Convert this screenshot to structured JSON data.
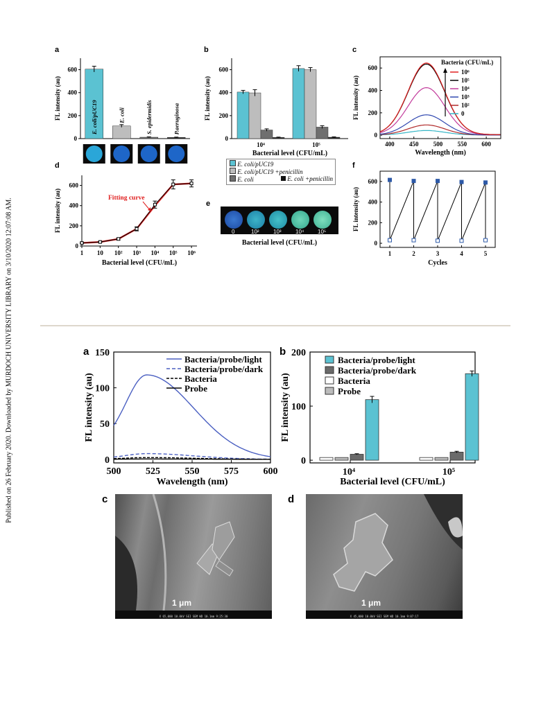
{
  "side_note": "Published on 26 February 2020. Downloaded by MURDOCH UNIVERSITY LIBRARY on 3/10/2020 12:07:08 AM.",
  "top_figure": {
    "panel_labels": [
      "a",
      "b",
      "c",
      "d",
      "e",
      "f"
    ],
    "fitting_label": "Fitting curve",
    "e_xlabel": "Bacterial level (CFU/mL)",
    "e_wells": [
      "0",
      "10²",
      "10³",
      "10⁴",
      "10⁵"
    ],
    "b_legend": [
      "E. coli/pUC19",
      "E. coli/pUC19 +penicillin",
      "E. coli",
      "E. coli +penicillin"
    ]
  },
  "bottom_figure": {
    "panel_labels": [
      "a",
      "b",
      "c",
      "d"
    ],
    "scale_bar_c": "1 μm",
    "scale_bar_d": "1 μm",
    "sem_meta_c": "X 65,000   10.0kV  SEI   SEM   WD 10.1mm  9:25:30",
    "sem_meta_d": "X 45,000   10.0kV  SEI   SEM   WD 10.1mm  9:07:17"
  },
  "chart_data": [
    {
      "id": "top-a",
      "type": "bar",
      "categories": [
        "E. coli/pUC19",
        "E. coli",
        "S. epidermidis",
        "P.aeruginosa"
      ],
      "values": [
        605,
        110,
        12,
        10
      ],
      "errors": [
        25,
        12,
        3,
        3
      ],
      "colors": [
        "#5bc2d2",
        "#bdbdbd",
        "#6f6f6f",
        "#262626"
      ],
      "ylabel": "FL intensity (au)",
      "ylim": [
        0,
        700
      ],
      "yticks": [
        "0",
        "200",
        "400",
        "600"
      ]
    },
    {
      "id": "top-b",
      "type": "bar",
      "categories": [
        "10⁴",
        "10⁵"
      ],
      "series": [
        {
          "name": "E. coli/pUC19",
          "values": [
            405,
            610
          ],
          "errors": [
            15,
            25
          ],
          "color": "#5bc2d2"
        },
        {
          "name": "E. coli/pUC19 +penicillin",
          "values": [
            398,
            600
          ],
          "errors": [
            28,
            18
          ],
          "color": "#bdbdbd"
        },
        {
          "name": "E. coli",
          "values": [
            75,
            100
          ],
          "errors": [
            10,
            12
          ],
          "color": "#6f6f6f"
        },
        {
          "name": "E. coli +penicillin",
          "values": [
            10,
            12
          ],
          "errors": [
            3,
            3
          ],
          "color": "#262626"
        }
      ],
      "xlabel": "Bacterial level (CFU/mL)",
      "ylabel": "FL intensity (au)",
      "ylim": [
        0,
        700
      ],
      "yticks": [
        "0",
        "200",
        "400",
        "600"
      ]
    },
    {
      "id": "top-c",
      "type": "line",
      "x_range": [
        380,
        630
      ],
      "xticks": [
        "400",
        "450",
        "500",
        "550",
        "600"
      ],
      "yticks": [
        "0",
        "200",
        "400",
        "600"
      ],
      "xlabel": "Wavelength (nm)",
      "ylabel": "FL intensity (au)",
      "ylim": [
        -30,
        700
      ],
      "legend_title": "Bacteria (CFU/mL)",
      "series": [
        {
          "name": "10⁶",
          "peak": 640,
          "color": "#e02020"
        },
        {
          "name": "10⁵",
          "peak": 630,
          "color": "#000000"
        },
        {
          "name": "10⁴",
          "peak": 420,
          "color": "#c23a9b"
        },
        {
          "name": "10³",
          "peak": 180,
          "color": "#3048b0"
        },
        {
          "name": "10²",
          "peak": 90,
          "color": "#b02828"
        },
        {
          "name": "0",
          "peak": 40,
          "color": "#35b5c5"
        }
      ]
    },
    {
      "id": "top-d",
      "type": "line",
      "xticks": [
        "1",
        "10",
        "10²",
        "10³",
        "10⁴",
        "10⁵",
        "10⁶"
      ],
      "yticks": [
        "0",
        "200",
        "400",
        "600"
      ],
      "xlabel": "Bacterial level  (CFU/mL)",
      "ylabel": "FL intensity (au)",
      "ylim": [
        0,
        700
      ],
      "x_log": [
        0,
        1,
        2,
        3,
        4,
        5,
        6
      ],
      "x_range_log": [
        0,
        6.3
      ],
      "y": [
        30,
        40,
        70,
        170,
        410,
        610,
        620
      ],
      "errors": [
        5,
        5,
        10,
        20,
        35,
        45,
        35
      ]
    },
    {
      "id": "top-f",
      "type": "scatter",
      "xticks": [
        "1",
        "2",
        "3",
        "4",
        "5"
      ],
      "yticks": [
        "0",
        "200",
        "400",
        "600"
      ],
      "xlabel": "Cycles",
      "ylabel": "FL intensity (au)",
      "ylim": [
        -40,
        700
      ],
      "high": [
        615,
        605,
        605,
        595,
        590
      ],
      "low": [
        30,
        30,
        25,
        25,
        30
      ]
    },
    {
      "id": "bottom-a",
      "type": "line",
      "x_range": [
        500,
        600
      ],
      "xticks": [
        "500",
        "525",
        "550",
        "575",
        "600"
      ],
      "yticks": [
        "0",
        "50",
        "100",
        "150"
      ],
      "xlabel": "Wavelength (nm)",
      "ylabel": "FL intensity (au)",
      "ylim": [
        -5,
        150
      ],
      "series": [
        {
          "name": "Bacteria/probe/light",
          "peak": 118,
          "color": "#4a5fc1",
          "dash": ""
        },
        {
          "name": "Bacteria/probe/dark",
          "peak": 8,
          "color": "#4a5fc1",
          "dash": "5,3"
        },
        {
          "name": "Bacteria",
          "peak": 2.5,
          "color": "#000000",
          "dash": "4,2"
        },
        {
          "name": "Probe",
          "peak": 0.5,
          "color": "#000000",
          "dash": ""
        }
      ]
    },
    {
      "id": "bottom-b",
      "type": "bar",
      "categories": [
        "10⁴",
        "10⁵"
      ],
      "series": [
        {
          "name": "Bacteria",
          "values": [
            5,
            5
          ],
          "errors": [
            0,
            0
          ],
          "color": "#ffffff"
        },
        {
          "name": "Probe",
          "values": [
            5,
            5
          ],
          "errors": [
            0,
            0
          ],
          "color": "#bcbcbc"
        },
        {
          "name": "Bacteria/probe/dark",
          "values": [
            11,
            15
          ],
          "errors": [
            1,
            1.5
          ],
          "color": "#6a6a6a"
        },
        {
          "name": "Bacteria/probe/light",
          "values": [
            112,
            160
          ],
          "errors": [
            6,
            5
          ],
          "color": "#5bc2d2"
        }
      ],
      "legend_order": [
        "Bacteria/probe/light",
        "Bacteria/probe/dark",
        "Bacteria",
        "Probe"
      ],
      "xlabel": "Bacterial level (CFU/mL)",
      "ylabel": "FL intensity (au)",
      "ylim": [
        -5,
        200
      ],
      "yticks": [
        "0",
        "100",
        "200"
      ]
    }
  ]
}
